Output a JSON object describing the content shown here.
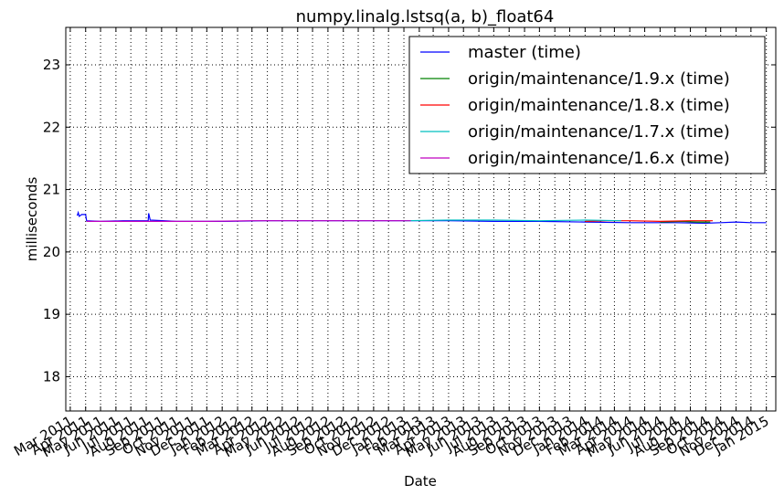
{
  "chart_data": {
    "type": "line",
    "title": "numpy.linalg.lstsq(a, b)_float64",
    "xlabel": "Date",
    "ylabel": "milliseconds",
    "ylim": [
      17.45,
      23.6
    ],
    "xlim": [
      "2011-02-20",
      "2015-01-20"
    ],
    "y_ticks": [
      18,
      19,
      20,
      21,
      22,
      23
    ],
    "x_tick_dates": [
      "2011-03-01",
      "2011-04-01",
      "2011-05-01",
      "2011-06-01",
      "2011-07-01",
      "2011-08-01",
      "2011-09-01",
      "2011-10-01",
      "2011-11-01",
      "2011-12-01",
      "2012-01-01",
      "2012-02-01",
      "2012-03-01",
      "2012-04-01",
      "2012-05-01",
      "2012-06-01",
      "2012-07-01",
      "2012-08-01",
      "2012-09-01",
      "2012-10-01",
      "2012-11-01",
      "2012-12-01",
      "2013-01-01",
      "2013-02-01",
      "2013-03-01",
      "2013-04-01",
      "2013-05-01",
      "2013-06-01",
      "2013-07-01",
      "2013-08-01",
      "2013-09-01",
      "2013-10-01",
      "2013-11-01",
      "2013-12-01",
      "2014-01-01",
      "2014-02-01",
      "2014-03-01",
      "2014-04-01",
      "2014-05-01",
      "2014-06-01",
      "2014-07-01",
      "2014-08-01",
      "2014-09-01",
      "2014-10-01",
      "2014-11-01",
      "2014-12-01",
      "2015-01-01"
    ],
    "x_tick_labels": [
      "Mar 2011",
      "Apr 2011",
      "May 2011",
      "Jun 2011",
      "Jul 2011",
      "Aug 2011",
      "Sep 2011",
      "Oct 2011",
      "Nov 2011",
      "Dec 2011",
      "Jan 2012",
      "Feb 2012",
      "Mar 2012",
      "Apr 2012",
      "May 2012",
      "Jun 2012",
      "Jul 2012",
      "Aug 2012",
      "Sep 2012",
      "Oct 2012",
      "Nov 2012",
      "Dec 2012",
      "Jan 2013",
      "Feb 2013",
      "Mar 2013",
      "Apr 2013",
      "May 2013",
      "Jun 2013",
      "Jul 2013",
      "Aug 2013",
      "Sep 2013",
      "Oct 2013",
      "Nov 2013",
      "Dec 2013",
      "Jan 2014",
      "Feb 2014",
      "Mar 2014",
      "Apr 2014",
      "May 2014",
      "Jun 2014",
      "Jul 2014",
      "Aug 2014",
      "Sep 2014",
      "Oct 2014",
      "Nov 2014",
      "Dec 2014",
      "Jan 2015"
    ],
    "grid": true,
    "legend_position": "top-right",
    "series": [
      {
        "name": "master (time)",
        "color": "#0000ff",
        "points": [
          [
            "2011-03-15",
            20.58
          ],
          [
            "2011-03-17",
            20.63
          ],
          [
            "2011-03-19",
            20.57
          ],
          [
            "2011-03-24",
            20.6
          ],
          [
            "2011-04-01",
            20.6
          ],
          [
            "2011-04-03",
            20.5
          ],
          [
            "2011-05-01",
            20.49
          ],
          [
            "2011-06-15",
            20.5
          ],
          [
            "2011-08-05",
            20.5
          ],
          [
            "2011-08-06",
            20.62
          ],
          [
            "2011-08-09",
            20.51
          ],
          [
            "2011-10-01",
            20.49
          ],
          [
            "2012-01-01",
            20.49
          ],
          [
            "2012-04-01",
            20.5
          ],
          [
            "2012-07-01",
            20.5
          ],
          [
            "2012-10-01",
            20.5
          ],
          [
            "2013-01-01",
            20.5
          ],
          [
            "2013-04-01",
            20.5
          ],
          [
            "2013-07-01",
            20.49
          ],
          [
            "2013-10-01",
            20.49
          ],
          [
            "2014-01-01",
            20.48
          ],
          [
            "2014-04-01",
            20.47
          ],
          [
            "2014-07-01",
            20.47
          ],
          [
            "2014-09-01",
            20.46
          ],
          [
            "2014-10-01",
            20.47
          ],
          [
            "2014-11-01",
            20.48
          ],
          [
            "2014-12-01",
            20.47
          ],
          [
            "2015-01-01",
            20.47
          ]
        ]
      },
      {
        "name": "origin/maintenance/1.9.x (time)",
        "color": "#008000",
        "points": [
          [
            "2014-06-01",
            20.48
          ],
          [
            "2014-07-15",
            20.49
          ],
          [
            "2014-08-15",
            20.48
          ],
          [
            "2014-09-10",
            20.48
          ]
        ]
      },
      {
        "name": "origin/maintenance/1.8.x (time)",
        "color": "#ff0000",
        "points": [
          [
            "2014-01-01",
            20.49
          ],
          [
            "2014-02-15",
            20.5
          ],
          [
            "2014-04-01",
            20.5
          ],
          [
            "2014-06-01",
            20.49
          ],
          [
            "2014-08-01",
            20.5
          ],
          [
            "2014-09-15",
            20.5
          ]
        ]
      },
      {
        "name": "origin/maintenance/1.7.x (time)",
        "color": "#00bfbf",
        "points": [
          [
            "2013-01-01",
            20.5
          ],
          [
            "2013-04-01",
            20.51
          ],
          [
            "2013-07-01",
            20.51
          ],
          [
            "2013-10-01",
            20.5
          ],
          [
            "2014-01-01",
            20.51
          ],
          [
            "2014-03-15",
            20.5
          ]
        ]
      },
      {
        "name": "origin/maintenance/1.6.x (time)",
        "color": "#bf00bf",
        "points": [
          [
            "2011-04-03",
            20.49
          ],
          [
            "2011-06-01",
            20.49
          ],
          [
            "2011-09-01",
            20.49
          ],
          [
            "2011-12-01",
            20.49
          ],
          [
            "2012-03-01",
            20.5
          ],
          [
            "2012-06-01",
            20.5
          ],
          [
            "2012-09-01",
            20.5
          ],
          [
            "2012-12-01",
            20.5
          ],
          [
            "2013-01-15",
            20.5
          ]
        ]
      }
    ]
  }
}
